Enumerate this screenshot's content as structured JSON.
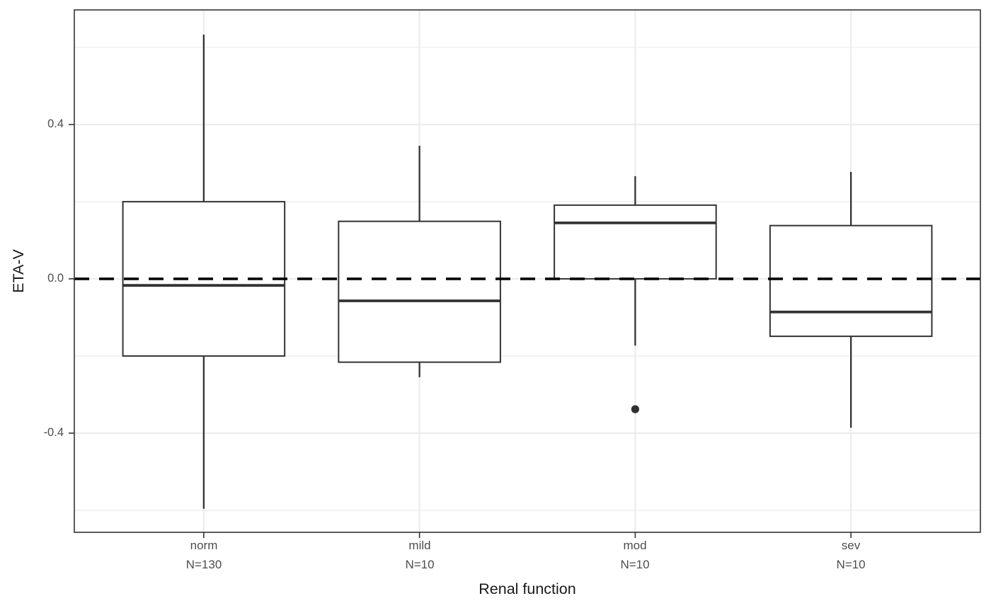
{
  "chart_data": {
    "type": "boxplot",
    "title": "",
    "xlabel": "Renal function",
    "ylabel": "ETA-V",
    "ylim": [
      -0.657,
      0.697
    ],
    "grid": true,
    "legend_position": "none",
    "y_major_ticks": [
      {
        "value": 0.4,
        "label": "0.4"
      },
      {
        "value": 0.0,
        "label": "0.0"
      },
      {
        "value": -0.4,
        "label": "-0.4"
      }
    ],
    "y_minor_gridlines": [
      0.6,
      0.2,
      -0.2,
      -0.6
    ],
    "reference_line": {
      "value": 0.0,
      "style": "dashed",
      "color": "#000000"
    },
    "categories": [
      {
        "label": "norm",
        "n_label": "N=130",
        "stats": {
          "whisker_low": -0.596,
          "q1": -0.2,
          "median": -0.017,
          "q3": 0.2,
          "whisker_high": 0.633
        },
        "outliers": []
      },
      {
        "label": "mild",
        "n_label": "N=10",
        "stats": {
          "whisker_low": -0.255,
          "q1": -0.216,
          "median": -0.057,
          "q3": 0.149,
          "whisker_high": 0.345
        },
        "outliers": []
      },
      {
        "label": "mod",
        "n_label": "N=10",
        "stats": {
          "whisker_low": -0.173,
          "q1": 0.0,
          "median": 0.145,
          "q3": 0.191,
          "whisker_high": 0.266
        },
        "outliers": [
          -0.338
        ]
      },
      {
        "label": "sev",
        "n_label": "N=10",
        "stats": {
          "whisker_low": -0.386,
          "q1": -0.149,
          "median": -0.086,
          "q3": 0.138,
          "whisker_high": 0.277
        },
        "outliers": []
      }
    ],
    "colors": {
      "panel_bg": "#ffffff",
      "panel_border": "#333333",
      "grid_major": "#ebebeb",
      "grid_minor": "#f0f0f0",
      "box_stroke": "#333335",
      "box_fill": "#ffffff",
      "outlier": "#2f2f2f",
      "tick_text": "#4d4d4d",
      "title_text": "#1a1a1a"
    }
  }
}
